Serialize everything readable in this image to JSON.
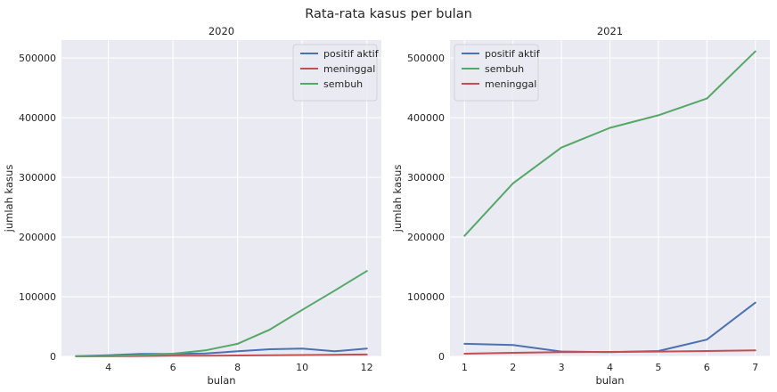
{
  "figure": {
    "title": "Rata-rata kasus per bulan"
  },
  "chart_data": [
    {
      "type": "line",
      "title": "2020",
      "xlabel": "bulan",
      "ylabel": "jumlah kasus",
      "xlim": [
        2.55,
        12.45
      ],
      "ylim": [
        0,
        530000
      ],
      "xticks": [
        4,
        6,
        8,
        10,
        12
      ],
      "yticks": [
        0,
        100000,
        200000,
        300000,
        400000,
        500000
      ],
      "grid": true,
      "legend": "top-right",
      "x": [
        3,
        4,
        5,
        6,
        7,
        8,
        9,
        10,
        11,
        12
      ],
      "series": [
        {
          "name": "positif aktif",
          "color": "#4c72b0",
          "values": [
            500,
            2000,
            4000,
            4000,
            5000,
            8500,
            12000,
            13000,
            8500,
            13000
          ]
        },
        {
          "name": "meninggal",
          "color": "#c44e52",
          "values": [
            0,
            200,
            600,
            1000,
            1200,
            1500,
            1800,
            2200,
            2700,
            3200
          ]
        },
        {
          "name": "sembuh",
          "color": "#55a868",
          "values": [
            100,
            600,
            2000,
            4500,
            10000,
            21000,
            45000,
            78000,
            110000,
            143000
          ]
        }
      ]
    },
    {
      "type": "line",
      "title": "2021",
      "xlabel": "bulan",
      "ylabel": "jumlah kasus",
      "xlim": [
        0.7,
        7.3
      ],
      "ylim": [
        0,
        530000
      ],
      "xticks": [
        1,
        2,
        3,
        4,
        5,
        6,
        7
      ],
      "yticks": [
        0,
        100000,
        200000,
        300000,
        400000,
        500000
      ],
      "grid": true,
      "legend": "top-left",
      "x": [
        1,
        2,
        3,
        4,
        5,
        6,
        7
      ],
      "series": [
        {
          "name": "positif aktif",
          "color": "#4c72b0",
          "values": [
            21000,
            19000,
            8000,
            7000,
            9000,
            28000,
            90000
          ]
        },
        {
          "name": "sembuh",
          "color": "#55a868",
          "values": [
            202000,
            290000,
            350000,
            383000,
            404000,
            432000,
            511000
          ]
        },
        {
          "name": "meninggal",
          "color": "#c44e52",
          "values": [
            4500,
            6000,
            7000,
            7500,
            8000,
            9000,
            10000
          ]
        }
      ]
    }
  ]
}
